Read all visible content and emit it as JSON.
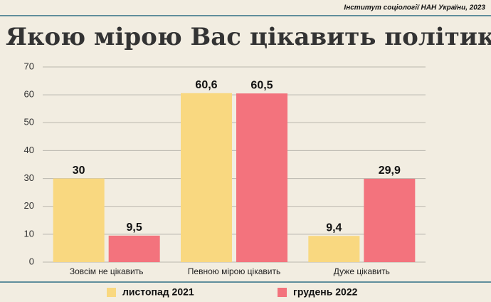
{
  "source": "Інститут соціології НАН України, 2023",
  "chart_data": {
    "type": "bar",
    "title": "Якою мірою Вас цікавить політика? %",
    "categories": [
      "Зовсім не цікавить",
      "Певною мірою цікавить",
      "Дуже цікавить"
    ],
    "series": [
      {
        "name": "листопад 2021",
        "color": "#f9d880",
        "values": [
          30,
          60.6,
          9.4
        ],
        "value_labels": [
          "30",
          "60,6",
          "9,4"
        ]
      },
      {
        "name": "грудень 2022",
        "color": "#f3737d",
        "values": [
          9.5,
          60.5,
          29.9
        ],
        "value_labels": [
          "9,5",
          "60,5",
          "29,9"
        ]
      }
    ],
    "ylim": [
      0,
      70
    ],
    "yticks": [
      0,
      10,
      20,
      30,
      40,
      50,
      60,
      70
    ],
    "grid": true,
    "legend": "bottom"
  }
}
